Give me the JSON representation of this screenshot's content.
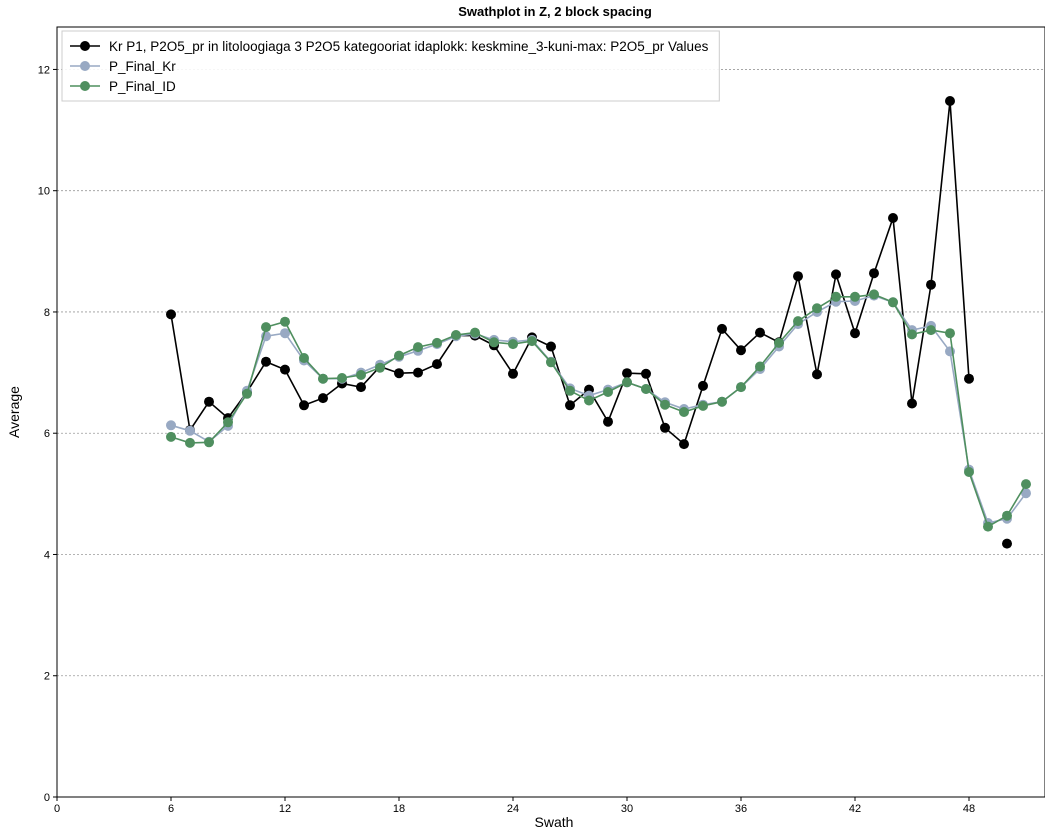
{
  "chart_data": {
    "type": "line",
    "title": "Swathplot in Z, 2 block spacing",
    "xlabel": "Swath",
    "ylabel": "Average",
    "xlim": [
      0,
      52
    ],
    "ylim": [
      0,
      12.7
    ],
    "xticks": [
      0,
      6,
      12,
      18,
      24,
      30,
      36,
      42,
      48
    ],
    "yticks": [
      0,
      2,
      4,
      6,
      8,
      10,
      12
    ],
    "grid": "y-dotted",
    "legend_position": "top-left",
    "x": [
      6,
      7,
      8,
      9,
      10,
      11,
      12,
      13,
      14,
      15,
      16,
      17,
      18,
      19,
      20,
      21,
      22,
      23,
      24,
      25,
      26,
      27,
      28,
      29,
      30,
      31,
      32,
      33,
      34,
      35,
      36,
      37,
      38,
      39,
      40,
      41,
      42,
      43,
      44,
      45,
      46,
      47,
      48,
      49,
      50,
      51
    ],
    "series": [
      {
        "name": "Kr P1, P2O5_pr in litoloogiaga 3 P2O5 kategooriat idaplokk: keskmine_3-kuni-max: P2O5_pr Values",
        "color": "#000000",
        "values": [
          7.96,
          6.05,
          6.52,
          6.25,
          6.68,
          7.18,
          7.05,
          6.46,
          6.58,
          6.82,
          6.76,
          7.1,
          6.99,
          7.0,
          7.14,
          7.61,
          7.61,
          7.45,
          6.98,
          7.58,
          7.43,
          6.46,
          6.72,
          6.19,
          6.99,
          6.98,
          6.09,
          5.82,
          6.78,
          7.72,
          7.37,
          7.66,
          7.5,
          8.59,
          6.97,
          8.62,
          7.65,
          8.64,
          9.55,
          6.49,
          8.45,
          11.48,
          6.9,
          null,
          4.18,
          null
        ]
      },
      {
        "name": "P_Final_Kr",
        "color": "#98a9c3",
        "values": [
          6.13,
          6.04,
          5.86,
          6.12,
          6.7,
          7.6,
          7.65,
          7.2,
          6.9,
          6.9,
          7.0,
          7.13,
          7.26,
          7.36,
          7.47,
          7.6,
          7.64,
          7.54,
          7.51,
          7.54,
          7.18,
          6.74,
          6.62,
          6.72,
          6.84,
          6.73,
          6.51,
          6.4,
          6.47,
          6.52,
          6.76,
          7.06,
          7.43,
          7.8,
          8.0,
          8.17,
          8.18,
          8.27,
          8.16,
          7.7,
          7.77,
          7.35,
          5.4,
          4.52,
          4.59,
          5.01
        ]
      },
      {
        "name": "P_Final_ID",
        "color": "#4f8f5f",
        "values": [
          5.94,
          5.84,
          5.85,
          6.18,
          6.65,
          7.75,
          7.84,
          7.24,
          6.9,
          6.91,
          6.96,
          7.08,
          7.28,
          7.42,
          7.49,
          7.62,
          7.66,
          7.5,
          7.47,
          7.52,
          7.17,
          6.7,
          6.54,
          6.68,
          6.84,
          6.73,
          6.47,
          6.35,
          6.45,
          6.52,
          6.76,
          7.1,
          7.49,
          7.85,
          8.06,
          8.25,
          8.25,
          8.29,
          8.16,
          7.63,
          7.7,
          7.65,
          5.36,
          4.46,
          4.64,
          5.16
        ]
      }
    ]
  }
}
